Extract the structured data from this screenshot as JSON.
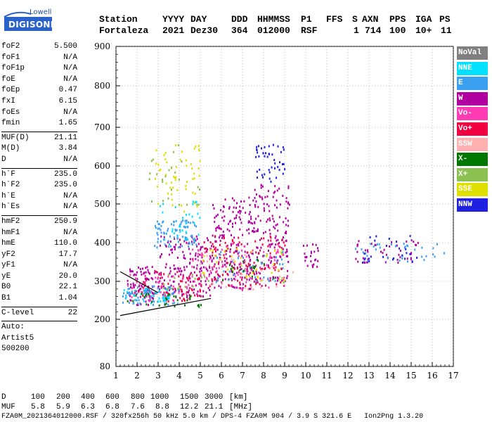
{
  "logo": {
    "top": "Lowell",
    "bottom": "DIGISONDE"
  },
  "header": {
    "labels": {
      "station": "Station",
      "yyyy": "YYYY",
      "day": "DAY",
      "ddd": "DDD",
      "hhmmss": "HHMMSS",
      "p1": "P1",
      "ffs": "FFS",
      "s": "S",
      "axn": "AXN",
      "pps": "PPS",
      "iga": "IGA",
      "ps": "PS"
    },
    "values": {
      "station": "Fortaleza",
      "yyyy": "2021",
      "day": "Dez30",
      "ddd": "364",
      "hhmmss": "012000",
      "p1": "RSF",
      "ffs": "",
      "s": "1",
      "axn": "714",
      "pps": "100",
      "iga": "10+",
      "ps": "11"
    }
  },
  "params": {
    "group1": [
      {
        "label": "foF2",
        "value": "5.500"
      },
      {
        "label": "foF1",
        "value": "N/A"
      },
      {
        "label": "foF1p",
        "value": "N/A"
      },
      {
        "label": "foE",
        "value": "N/A"
      },
      {
        "label": "foEp",
        "value": "0.47"
      },
      {
        "label": "fxI",
        "value": "6.15"
      },
      {
        "label": "foEs",
        "value": "N/A"
      },
      {
        "label": "fmin",
        "value": "1.65"
      }
    ],
    "group2": [
      {
        "label": "MUF(D)",
        "value": "21.11"
      },
      {
        "label": "M(D)",
        "value": "3.84"
      },
      {
        "label": "D",
        "value": "N/A"
      }
    ],
    "group3": [
      {
        "label": "h`F",
        "value": "235.0"
      },
      {
        "label": "h`F2",
        "value": "235.0"
      },
      {
        "label": "h`E",
        "value": "N/A"
      },
      {
        "label": "h`Es",
        "value": "N/A"
      }
    ],
    "group4": [
      {
        "label": "hmF2",
        "value": "250.9"
      },
      {
        "label": "hmF1",
        "value": "N/A"
      },
      {
        "label": "hmE",
        "value": "110.0"
      },
      {
        "label": "yF2",
        "value": "17.7"
      },
      {
        "label": "yF1",
        "value": "N/A"
      },
      {
        "label": "yE",
        "value": "20.0"
      },
      {
        "label": "B0",
        "value": "22.1"
      },
      {
        "label": "B1",
        "value": "1.04"
      }
    ],
    "group5": [
      {
        "label": "C-level",
        "value": "22"
      }
    ],
    "auto": [
      "Auto:",
      "Artist5",
      "500200"
    ]
  },
  "legend": [
    {
      "label": "NoVal",
      "color": "#808080"
    },
    {
      "label": "NNE",
      "color": "#00e0ff"
    },
    {
      "label": "E",
      "color": "#3ca0f0"
    },
    {
      "label": "W",
      "color": "#b000a0"
    },
    {
      "label": "Vo-",
      "color": "#ff3cb4"
    },
    {
      "label": "Vo+",
      "color": "#f00040"
    },
    {
      "label": "SSW",
      "color": "#ffb0b0"
    },
    {
      "label": "X-",
      "color": "#007800"
    },
    {
      "label": "X+",
      "color": "#8cc050"
    },
    {
      "label": "SSE",
      "color": "#e0e000"
    },
    {
      "label": "NNW",
      "color": "#2020e0"
    }
  ],
  "chart_data": {
    "type": "scatter",
    "xlim": [
      1,
      17
    ],
    "ylim": [
      80,
      900
    ],
    "x_ticks": [
      "1",
      "2",
      "3",
      "4",
      "5",
      "6",
      "7",
      "8",
      "9",
      "10",
      "11",
      "12",
      "13",
      "14",
      "15",
      "16",
      "17"
    ],
    "y_ticks": [
      "80",
      "200",
      "300",
      "400",
      "500",
      "600",
      "700",
      "800",
      "900"
    ],
    "grid": true,
    "series": [
      {
        "name": "W",
        "clusters": [
          {
            "x": [
              1.5,
              3.0
            ],
            "y": [
              240,
              340
            ],
            "n": 90
          },
          {
            "x": [
              3.0,
              5.5
            ],
            "y": [
              260,
              420
            ],
            "n": 160
          },
          {
            "x": [
              5.5,
              7.5
            ],
            "y": [
              280,
              520
            ],
            "n": 180
          },
          {
            "x": [
              7.5,
              9.2
            ],
            "y": [
              290,
              560
            ],
            "n": 150
          },
          {
            "x": [
              9.8,
              10.6
            ],
            "y": [
              340,
              400
            ],
            "n": 25
          },
          {
            "x": [
              12.3,
              15.5
            ],
            "y": [
              350,
              410
            ],
            "n": 45
          }
        ]
      },
      {
        "name": "Vo+",
        "clusters": [
          {
            "x": [
              2.0,
              5.0
            ],
            "y": [
              250,
              330
            ],
            "n": 70
          },
          {
            "x": [
              5.0,
              9.0
            ],
            "y": [
              290,
              420
            ],
            "n": 120
          }
        ]
      },
      {
        "name": "Vo-",
        "clusters": [
          {
            "x": [
              1.5,
              4.5
            ],
            "y": [
              250,
              320
            ],
            "n": 50
          },
          {
            "x": [
              4.5,
              9.0
            ],
            "y": [
              280,
              400
            ],
            "n": 90
          }
        ]
      },
      {
        "name": "E",
        "clusters": [
          {
            "x": [
              1.3,
              4.0
            ],
            "y": [
              240,
              290
            ],
            "n": 70
          },
          {
            "x": [
              2.8,
              4.8
            ],
            "y": [
              390,
              460
            ],
            "n": 80
          },
          {
            "x": [
              5.5,
              9.0
            ],
            "y": [
              300,
              380
            ],
            "n": 40
          },
          {
            "x": [
              12.3,
              16.8
            ],
            "y": [
              350,
              400
            ],
            "n": 35
          }
        ]
      },
      {
        "name": "NNE",
        "clusters": [
          {
            "x": [
              1.3,
              3.5
            ],
            "y": [
              245,
              285
            ],
            "n": 35
          },
          {
            "x": [
              3.0,
              5.0
            ],
            "y": [
              400,
              520
            ],
            "n": 30
          }
        ]
      },
      {
        "name": "SSE",
        "clusters": [
          {
            "x": [
              2.8,
              5.0
            ],
            "y": [
              480,
              660
            ],
            "n": 55
          },
          {
            "x": [
              5.0,
              9.0
            ],
            "y": [
              300,
              390
            ],
            "n": 40
          }
        ]
      },
      {
        "name": "X-",
        "clusters": [
          {
            "x": [
              1.5,
              5.0
            ],
            "y": [
              235,
              270
            ],
            "n": 30
          },
          {
            "x": [
              6.0,
              8.5
            ],
            "y": [
              300,
              360
            ],
            "n": 20
          }
        ]
      },
      {
        "name": "X+",
        "clusters": [
          {
            "x": [
              2.5,
              5.0
            ],
            "y": [
              500,
              660
            ],
            "n": 25
          },
          {
            "x": [
              3.0,
              5.5
            ],
            "y": [
              260,
              320
            ],
            "n": 15
          }
        ]
      },
      {
        "name": "SSW",
        "clusters": [
          {
            "x": [
              4.5,
              9.5
            ],
            "y": [
              280,
              380
            ],
            "n": 30
          }
        ]
      },
      {
        "name": "NNW",
        "clusters": [
          {
            "x": [
              7.6,
              9.0
            ],
            "y": [
              560,
              660
            ],
            "n": 45
          },
          {
            "x": [
              12.5,
              15.3
            ],
            "y": [
              350,
              420
            ],
            "n": 25
          }
        ]
      }
    ],
    "fit_lines": [
      {
        "x": [
          1.2,
          5.5
        ],
        "y": [
          210,
          255
        ]
      },
      {
        "x": [
          1.2,
          3.0
        ],
        "y": [
          325,
          270
        ]
      }
    ]
  },
  "footer": {
    "d_label": "D",
    "d_values": [
      "100",
      "200",
      "400",
      "600",
      "800",
      "1000",
      "1500",
      "3000"
    ],
    "d_unit": "[km]",
    "muf_label": "MUF",
    "muf_values": [
      "5.8",
      "5.9",
      "6.3",
      "6.8",
      "7.6",
      "8.8",
      "12.2",
      "21.1"
    ],
    "muf_unit": "[MHz]",
    "line": "FZA0M_2021364012000.RSF / 320fx256h 50 kHz 5.0 km / DPS-4 FZA0M 904 / 3.9 S 321.6 E   Ion2Png 1.3.20"
  }
}
